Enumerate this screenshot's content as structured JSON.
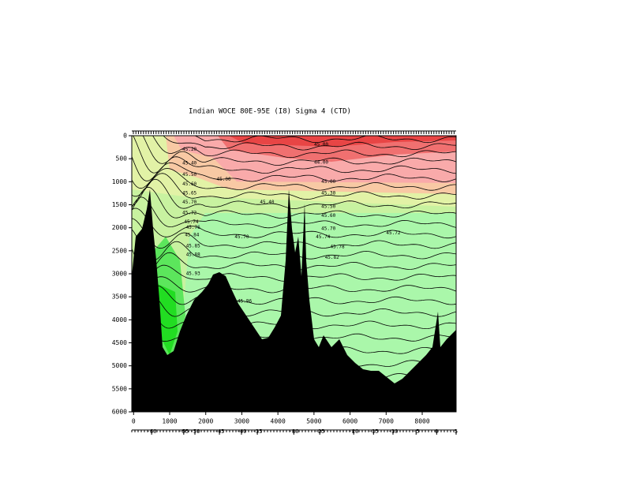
{
  "chart_data": {
    "type": "section",
    "title": "Indian WOCE 80E-95E (I8) Sigma 4 (CTD)",
    "xlim": [
      -50,
      8940
    ],
    "ylim": [
      0,
      6000
    ],
    "xticks": [
      0,
      1000,
      2000,
      3000,
      4000,
      5000,
      6000,
      7000,
      8000
    ],
    "yticks": [
      0,
      500,
      1000,
      1500,
      2000,
      2500,
      3000,
      3500,
      4000,
      4500,
      5000,
      5500,
      6000
    ],
    "x2ticks": [
      {
        "value": 500,
        "label": "-60"
      },
      {
        "value": 1390,
        "label": "-55"
      },
      {
        "value": 1700,
        "label": "-50"
      },
      {
        "value": 2380,
        "label": "-45"
      },
      {
        "value": 2990,
        "label": "-40"
      },
      {
        "value": 3430,
        "label": "-35"
      },
      {
        "value": 4440,
        "label": "-30"
      },
      {
        "value": 5160,
        "label": "-25"
      },
      {
        "value": 6100,
        "label": "-20"
      },
      {
        "value": 6650,
        "label": "-15"
      },
      {
        "value": 7190,
        "label": "-10"
      },
      {
        "value": 7830,
        "label": "-5"
      },
      {
        "value": 8400,
        "label": "0"
      },
      {
        "value": 8940,
        "label": "5"
      }
    ],
    "contour_labels": [
      {
        "x": 5200,
        "y": 200,
        "label": "45.00"
      },
      {
        "x": 5200,
        "y": 580,
        "label": "44.00"
      },
      {
        "x": 2500,
        "y": 950,
        "label": "45.00"
      },
      {
        "x": 5400,
        "y": 1000,
        "label": "45.00"
      },
      {
        "x": 5400,
        "y": 1250,
        "label": "45.30"
      },
      {
        "x": 3700,
        "y": 1450,
        "label": "45.40"
      },
      {
        "x": 5400,
        "y": 1540,
        "label": "45.50"
      },
      {
        "x": 5400,
        "y": 1740,
        "label": "45.60"
      },
      {
        "x": 5400,
        "y": 2020,
        "label": "45.70"
      },
      {
        "x": 7200,
        "y": 2120,
        "label": "45.72"
      },
      {
        "x": 5250,
        "y": 2200,
        "label": "45.74"
      },
      {
        "x": 3000,
        "y": 2200,
        "label": "45.70"
      },
      {
        "x": 5650,
        "y": 2420,
        "label": "45.78"
      },
      {
        "x": 5500,
        "y": 2650,
        "label": "45.82"
      },
      {
        "x": 1550,
        "y": 300,
        "label": "45.20"
      },
      {
        "x": 1550,
        "y": 600,
        "label": "45.40"
      },
      {
        "x": 1550,
        "y": 850,
        "label": "45.50"
      },
      {
        "x": 1550,
        "y": 1050,
        "label": "45.60"
      },
      {
        "x": 1550,
        "y": 1250,
        "label": "45.65"
      },
      {
        "x": 1550,
        "y": 1450,
        "label": "45.70"
      },
      {
        "x": 1550,
        "y": 1680,
        "label": "45.72"
      },
      {
        "x": 1600,
        "y": 1880,
        "label": "45.74"
      },
      {
        "x": 1650,
        "y": 2000,
        "label": "45.76"
      },
      {
        "x": 1620,
        "y": 2160,
        "label": "45.84"
      },
      {
        "x": 1650,
        "y": 2400,
        "label": "45.85"
      },
      {
        "x": 1650,
        "y": 2590,
        "label": "45.88"
      },
      {
        "x": 1650,
        "y": 3000,
        "label": "45.93"
      },
      {
        "x": 3080,
        "y": 3600,
        "label": "45.96"
      }
    ]
  }
}
